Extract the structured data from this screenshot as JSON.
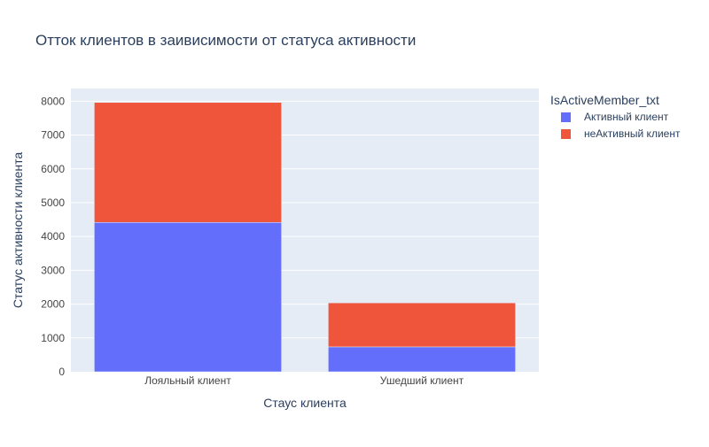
{
  "chart_data": {
    "type": "bar",
    "stacked": true,
    "title": "Отток клиентов в заивисимости от статуса активности",
    "xlabel": "Стаус клиента",
    "ylabel": "Статус активности клиента",
    "categories": [
      "Лояльный клиент",
      "Ушедший клиент"
    ],
    "ylim": [
      0,
      8376
    ],
    "yticks": [
      0,
      1000,
      2000,
      3000,
      4000,
      5000,
      6000,
      7000,
      8000
    ],
    "grid": true,
    "legend_title": "IsActiveMember_txt",
    "legend_position": "top-right",
    "series": [
      {
        "name": "Активный клиент",
        "values": [
          4416,
          735
        ],
        "color": "#636efa"
      },
      {
        "name": "неАктивный клиент",
        "values": [
          3547,
          1302
        ],
        "color": "#ef553b"
      }
    ],
    "colors": {
      "plot_bg": "#e5ecf6",
      "grid": "#ffffff",
      "text": "#2a3f5f",
      "tick_text": "#444444"
    }
  }
}
